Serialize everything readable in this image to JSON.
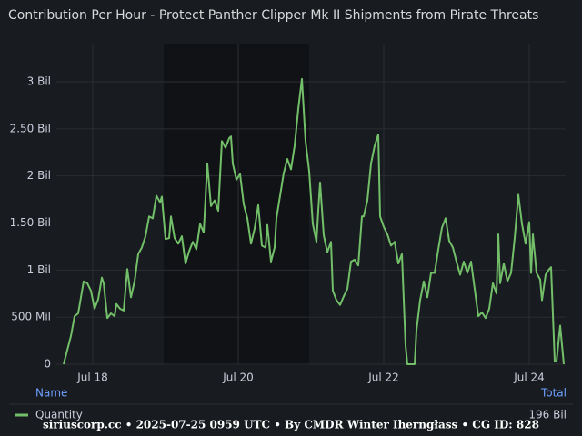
{
  "chart_data": {
    "type": "line",
    "title": "Contribution Per Hour - Protect Panther Clipper Mk II Shipments from Pirate Threats",
    "x": [
      17.6,
      17.7,
      17.75,
      17.8,
      17.875,
      17.925,
      17.975,
      18.025,
      18.075,
      18.125,
      18.15,
      18.2,
      18.25,
      18.3,
      18.325,
      18.375,
      18.425,
      18.475,
      18.525,
      18.575,
      18.625,
      18.675,
      18.725,
      18.775,
      18.825,
      18.875,
      18.925,
      18.95,
      19.0,
      19.05,
      19.075,
      19.125,
      19.175,
      19.225,
      19.275,
      19.325,
      19.375,
      19.425,
      19.475,
      19.525,
      19.575,
      19.625,
      19.675,
      19.725,
      19.775,
      19.825,
      19.875,
      19.9,
      19.925,
      19.975,
      20.025,
      20.075,
      20.125,
      20.175,
      20.225,
      20.275,
      20.325,
      20.375,
      20.4,
      20.45,
      20.5,
      20.525,
      20.575,
      20.625,
      20.675,
      20.725,
      20.775,
      20.825,
      20.875,
      20.925,
      20.975,
      21.025,
      21.075,
      21.1,
      21.125,
      21.175,
      21.225,
      21.275,
      21.3,
      21.35,
      21.4,
      21.45,
      21.5,
      21.55,
      21.6,
      21.65,
      21.7,
      21.725,
      21.775,
      21.825,
      21.875,
      21.925,
      21.95,
      22.0,
      22.05,
      22.1,
      22.15,
      22.2,
      22.25,
      22.3,
      22.325,
      22.425,
      22.45,
      22.5,
      22.55,
      22.6,
      22.65,
      22.7,
      22.75,
      22.8,
      22.85,
      22.9,
      22.95,
      23.0,
      23.05,
      23.1,
      23.15,
      23.2,
      23.25,
      23.3,
      23.35,
      23.4,
      23.45,
      23.5,
      23.55,
      23.575,
      23.6,
      23.65,
      23.7,
      23.75,
      23.8,
      23.85,
      23.9,
      23.95,
      24.0,
      24.025,
      24.05,
      24.1,
      24.15,
      24.175,
      24.225,
      24.275,
      24.3,
      24.35,
      24.375,
      24.425,
      24.475
    ],
    "series": [
      {
        "name": "Quantity",
        "color": "#73bf69",
        "values": [
          0,
          0.3,
          0.51,
          0.54,
          0.88,
          0.86,
          0.78,
          0.59,
          0.69,
          0.92,
          0.86,
          0.49,
          0.54,
          0.51,
          0.64,
          0.59,
          0.57,
          1.01,
          0.71,
          0.88,
          1.17,
          1.24,
          1.36,
          1.57,
          1.55,
          1.79,
          1.72,
          1.78,
          1.33,
          1.34,
          1.57,
          1.34,
          1.28,
          1.36,
          1.07,
          1.2,
          1.3,
          1.22,
          1.49,
          1.4,
          2.13,
          1.68,
          1.74,
          1.63,
          2.37,
          2.3,
          2.4,
          2.42,
          2.13,
          1.96,
          2.02,
          1.7,
          1.55,
          1.28,
          1.44,
          1.69,
          1.26,
          1.24,
          1.48,
          1.09,
          1.24,
          1.55,
          1.79,
          2.03,
          2.18,
          2.07,
          2.32,
          2.71,
          3.03,
          2.37,
          2.05,
          1.49,
          1.3,
          1.63,
          1.93,
          1.37,
          1.19,
          1.3,
          0.78,
          0.68,
          0.63,
          0.72,
          0.8,
          1.09,
          1.11,
          1.05,
          1.57,
          1.57,
          1.74,
          2.13,
          2.32,
          2.44,
          1.57,
          1.46,
          1.38,
          1.26,
          1.3,
          1.07,
          1.17,
          0.2,
          0,
          0,
          0.36,
          0.68,
          0.88,
          0.71,
          0.97,
          0.97,
          1.22,
          1.45,
          1.55,
          1.31,
          1.24,
          1.09,
          0.95,
          1.09,
          0.97,
          1.09,
          0.8,
          0.51,
          0.55,
          0.49,
          0.59,
          0.86,
          0.75,
          1.38,
          0.86,
          1.07,
          0.88,
          0.97,
          1.34,
          1.8,
          1.49,
          1.28,
          1.51,
          0.97,
          1.38,
          0.97,
          0.9,
          0.68,
          0.95,
          1.01,
          1.03,
          0.03,
          0.03,
          0.41,
          0
        ]
      }
    ],
    "xlim": [
      17.5,
      24.5
    ],
    "xticks": [
      {
        "value": 18,
        "label": "Jul 18"
      },
      {
        "value": 20,
        "label": "Jul 20"
      },
      {
        "value": 22,
        "label": "Jul 22"
      },
      {
        "value": 24,
        "label": "Jul 24"
      }
    ],
    "ylim": [
      0,
      3.36
    ],
    "yticks": [
      0,
      {
        "value": 0.5,
        "label": "500 Mil"
      },
      {
        "value": 1,
        "label": "1 Bil"
      },
      {
        "value": 1.5,
        "label": "1.50 Bil"
      },
      {
        "value": 2,
        "label": "2 Bil"
      },
      {
        "value": 2.5,
        "label": "2.50 Bil"
      },
      {
        "value": 3,
        "label": "3 Bil"
      }
    ],
    "grid": true,
    "legend": {
      "name_header": "Name",
      "total_header": "Total",
      "total": "196 Bil"
    },
    "footer": "siriuscorp.cc • 2025-07-25 0959 UTC • By CMDR Winter Iherngłass • CG ID: 828"
  }
}
